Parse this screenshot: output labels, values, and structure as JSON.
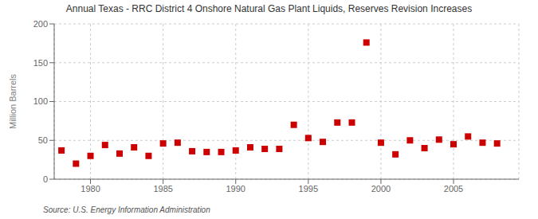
{
  "chart_data": {
    "type": "scatter",
    "title": "Annual Texas - RRC District 4 Onshore Natural Gas Plant Liquids, Reserves Revision Increases",
    "ylabel": "Million Barrels",
    "annotation": "Source: U.S. Energy Information Administration",
    "x": [
      1978,
      1979,
      1980,
      1981,
      1982,
      1983,
      1984,
      1985,
      1986,
      1987,
      1988,
      1989,
      1990,
      1991,
      1992,
      1993,
      1994,
      1995,
      1996,
      1997,
      1998,
      1999,
      2000,
      2001,
      2002,
      2003,
      2004,
      2005,
      2006,
      2007,
      2008
    ],
    "values": [
      37,
      20,
      30,
      44,
      33,
      41,
      30,
      46,
      47,
      36,
      35,
      35,
      37,
      41,
      39,
      39,
      70,
      53,
      48,
      73,
      73,
      176,
      47,
      32,
      50,
      40,
      51,
      45,
      55,
      47,
      46
    ],
    "color": "#cc0000",
    "marker": "square",
    "xlim": [
      1977.5,
      2009.5
    ],
    "ylim": [
      0,
      200
    ],
    "xticks": [
      1980,
      1985,
      1990,
      1995,
      2000,
      2005
    ],
    "yticks": [
      0,
      50,
      100,
      150,
      200
    ],
    "grid": true
  }
}
